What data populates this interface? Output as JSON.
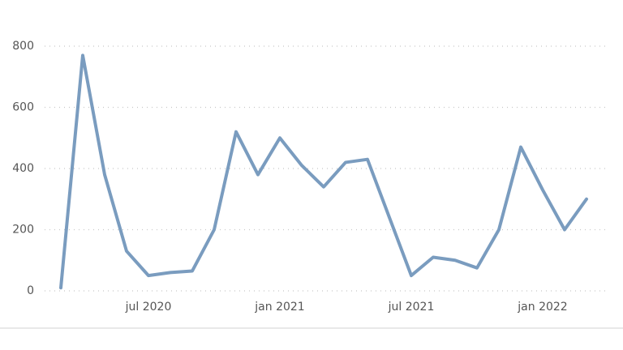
{
  "chart_data": {
    "type": "line",
    "x": [
      "2020-03",
      "2020-04",
      "2020-05",
      "2020-06",
      "2020-07",
      "2020-08",
      "2020-09",
      "2020-10",
      "2020-11",
      "2020-12",
      "2021-01",
      "2021-02",
      "2021-03",
      "2021-04",
      "2021-05",
      "2021-06",
      "2021-07",
      "2021-08",
      "2021-09",
      "2021-10",
      "2021-11",
      "2021-12",
      "2022-01",
      "2022-02",
      "2022-03"
    ],
    "series": [
      {
        "color": "#7a9cbf",
        "values": [
          10,
          770,
          380,
          130,
          50,
          60,
          65,
          200,
          520,
          380,
          500,
          410,
          340,
          420,
          430,
          240,
          50,
          110,
          100,
          75,
          200,
          470,
          330,
          200,
          300
        ]
      }
    ],
    "ylim": [
      0,
      800
    ],
    "yticks": [
      0,
      200,
      400,
      600,
      800
    ],
    "xticks": [
      {
        "value": "2020-07",
        "label": "jul 2020"
      },
      {
        "value": "2021-01",
        "label": "jan 2021"
      },
      {
        "value": "2021-07",
        "label": "jul 2021"
      },
      {
        "value": "2022-01",
        "label": "jan 2022"
      }
    ],
    "grid": true
  }
}
